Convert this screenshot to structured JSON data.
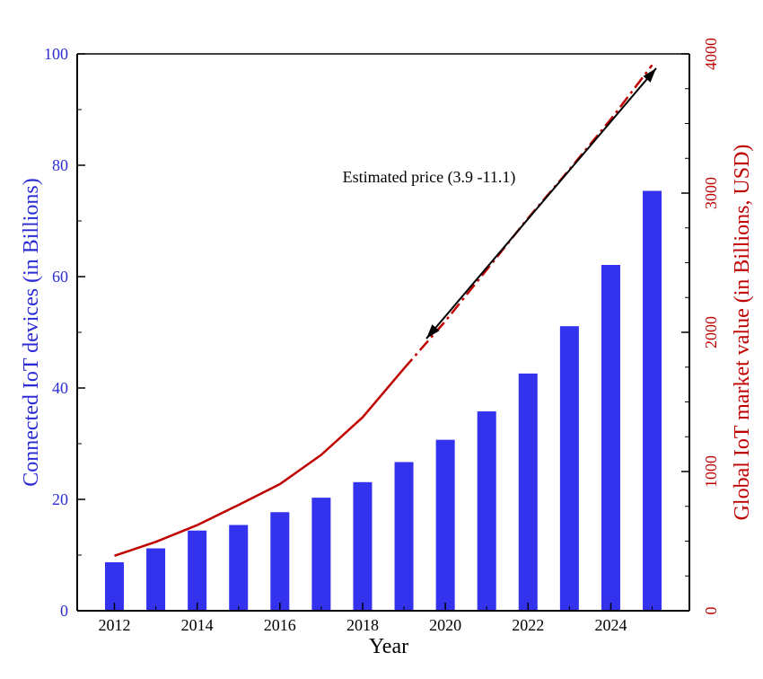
{
  "chart_data": {
    "type": "bar",
    "xlabel": "Year",
    "ylabel_left": "Connected IoT devices (in Billions)",
    "ylabel_right": "Global IoT market value (in Billions, USD)",
    "annotation": "Estimated price (3.9 -11.1)",
    "x_ticks": [
      "2012",
      "2014",
      "2016",
      "2018",
      "2020",
      "2022",
      "2024"
    ],
    "y_left_ticks": [
      "0",
      "20",
      "40",
      "60",
      "80",
      "100"
    ],
    "y_right_ticks": [
      "0",
      "1000",
      "2000",
      "3000",
      "4000"
    ],
    "ylim_left": [
      0,
      100
    ],
    "ylim_right": [
      0,
      4000
    ],
    "xlim": [
      2011.1,
      2025.9
    ],
    "colors": {
      "bars": "#3333ee",
      "line": "#c00000",
      "left_axis": "#2b2bd6",
      "right_axis": "#c00000",
      "arrow": "#000000"
    },
    "series": [
      {
        "name": "Connected IoT devices",
        "axis": "left",
        "type": "bar",
        "x": [
          2012,
          2013,
          2014,
          2015,
          2016,
          2017,
          2018,
          2019,
          2020,
          2021,
          2022,
          2023,
          2024,
          2025
        ],
        "values": [
          8.7,
          11.2,
          14.4,
          15.4,
          17.7,
          20.3,
          23.1,
          26.7,
          30.7,
          35.8,
          42.6,
          51.1,
          62.1,
          75.4
        ]
      },
      {
        "name": "Global IoT market value",
        "axis": "right",
        "type": "line",
        "style": "solid",
        "x": [
          2012,
          2013,
          2014,
          2015,
          2016,
          2017,
          2018,
          2019
        ],
        "values": [
          395,
          495,
          615,
          760,
          910,
          1120,
          1390,
          1740
        ]
      },
      {
        "name": "Global IoT market value (estimated)",
        "axis": "right",
        "type": "line",
        "style": "dashdot",
        "x": [
          2019,
          2020,
          2021,
          2022,
          2023,
          2024,
          2025
        ],
        "values": [
          1740,
          2080,
          2450,
          2820,
          3170,
          3530,
          3920
        ]
      }
    ]
  }
}
